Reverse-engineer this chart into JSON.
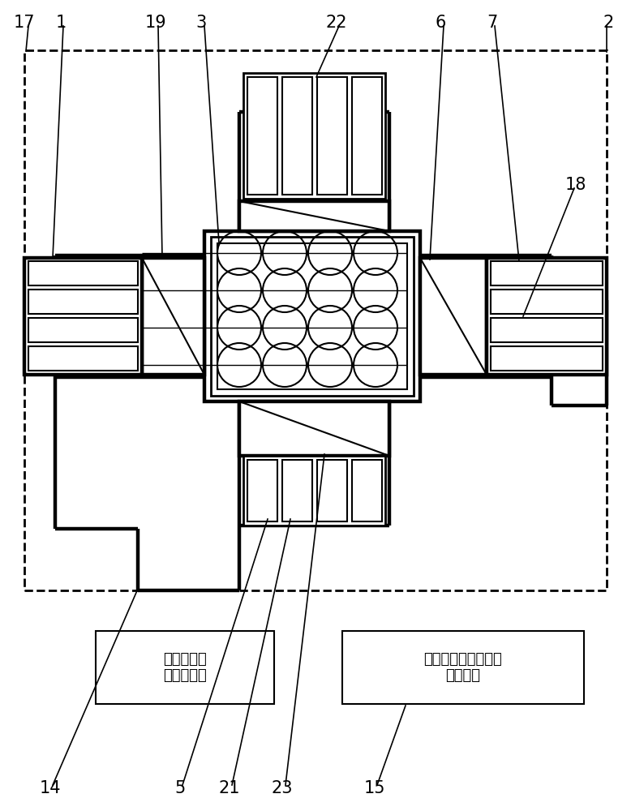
{
  "bg_color": "#ffffff",
  "line_color": "#000000",
  "box_left_label": "智能调制矩\n阵功率光源",
  "box_right_label": "三维电磁场光学信息\n处理单元",
  "top_labels": [
    [
      "17",
      30,
      28
    ],
    [
      "1",
      75,
      28
    ],
    [
      "19",
      192,
      28
    ],
    [
      "3",
      248,
      28
    ],
    [
      "22",
      415,
      28
    ],
    [
      "6",
      543,
      28
    ],
    [
      "7",
      607,
      28
    ],
    [
      "2",
      750,
      28
    ]
  ],
  "side_labels": [
    [
      "18",
      710,
      228
    ]
  ],
  "bottom_labels": [
    [
      "14",
      62,
      972
    ],
    [
      "5",
      222,
      972
    ],
    [
      "21",
      283,
      972
    ],
    [
      "23",
      348,
      972
    ],
    [
      "15",
      462,
      972
    ]
  ]
}
